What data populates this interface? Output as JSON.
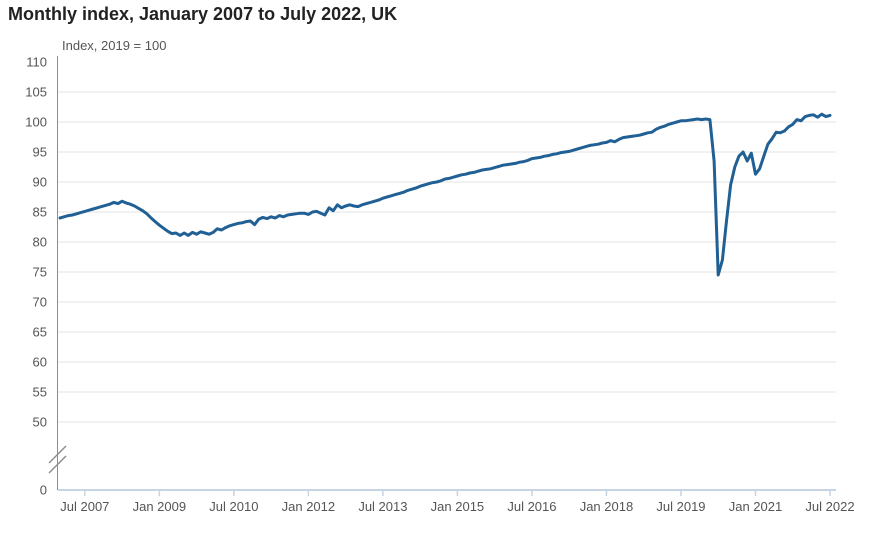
{
  "page": {
    "background": "#ffffff"
  },
  "chart_data": {
    "type": "line",
    "title": "Monthly index, January 2007 to July 2022, UK",
    "subtitle": "Index, 2019 = 100",
    "x_range": {
      "start": "January 2007",
      "end": "July 2022",
      "frequency": "monthly"
    },
    "x_ticks": [
      {
        "label": "Jul 2007",
        "month_index": 6
      },
      {
        "label": "Jan 2009",
        "month_index": 24
      },
      {
        "label": "Jul 2010",
        "month_index": 42
      },
      {
        "label": "Jan 2012",
        "month_index": 60
      },
      {
        "label": "Jul 2013",
        "month_index": 78
      },
      {
        "label": "Jan 2015",
        "month_index": 96
      },
      {
        "label": "Jul 2016",
        "month_index": 114
      },
      {
        "label": "Jan 2018",
        "month_index": 132
      },
      {
        "label": "Jul 2019",
        "month_index": 150
      },
      {
        "label": "Jan 2021",
        "month_index": 168
      },
      {
        "label": "Jul 2022",
        "month_index": 186
      }
    ],
    "y_ticks": [
      110,
      105,
      100,
      95,
      90,
      85,
      80,
      75,
      70,
      65,
      60,
      55,
      50,
      0
    ],
    "y_axis_break": true,
    "ylim_main": [
      50,
      110
    ],
    "grid": true,
    "legend": "none",
    "values": [
      84.0,
      84.2,
      84.4,
      84.5,
      84.7,
      84.9,
      85.1,
      85.3,
      85.5,
      85.7,
      85.9,
      86.1,
      86.3,
      86.6,
      86.4,
      86.8,
      86.5,
      86.3,
      86.0,
      85.6,
      85.2,
      84.7,
      84.0,
      83.4,
      82.8,
      82.3,
      81.8,
      81.4,
      81.5,
      81.1,
      81.5,
      81.1,
      81.6,
      81.3,
      81.7,
      81.5,
      81.3,
      81.6,
      82.2,
      82.0,
      82.4,
      82.7,
      82.9,
      83.1,
      83.2,
      83.4,
      83.5,
      82.9,
      83.8,
      84.1,
      83.9,
      84.2,
      84.0,
      84.4,
      84.2,
      84.5,
      84.6,
      84.7,
      84.8,
      84.8,
      84.6,
      85.0,
      85.1,
      84.8,
      84.5,
      85.7,
      85.2,
      86.2,
      85.7,
      86.0,
      86.2,
      86.0,
      85.9,
      86.2,
      86.4,
      86.6,
      86.8,
      87.0,
      87.3,
      87.5,
      87.7,
      87.9,
      88.1,
      88.3,
      88.6,
      88.8,
      89.0,
      89.3,
      89.5,
      89.7,
      89.9,
      90.0,
      90.2,
      90.5,
      90.6,
      90.8,
      91.0,
      91.2,
      91.3,
      91.5,
      91.6,
      91.8,
      92.0,
      92.1,
      92.2,
      92.4,
      92.6,
      92.8,
      92.9,
      93.0,
      93.1,
      93.3,
      93.4,
      93.6,
      93.9,
      94.0,
      94.1,
      94.3,
      94.4,
      94.6,
      94.7,
      94.9,
      95.0,
      95.1,
      95.3,
      95.5,
      95.7,
      95.9,
      96.1,
      96.2,
      96.3,
      96.5,
      96.6,
      96.9,
      96.7,
      97.1,
      97.4,
      97.5,
      97.6,
      97.7,
      97.8,
      98.0,
      98.2,
      98.3,
      98.8,
      99.1,
      99.3,
      99.6,
      99.8,
      100.0,
      100.2,
      100.2,
      100.3,
      100.4,
      100.5,
      100.4,
      100.5,
      100.4,
      93.5,
      74.5,
      77.0,
      83.5,
      89.5,
      92.5,
      94.3,
      95.0,
      93.5,
      94.8,
      91.3,
      92.2,
      94.3,
      96.3,
      97.2,
      98.3,
      98.2,
      98.5,
      99.2,
      99.6,
      100.4,
      100.2,
      100.9,
      101.1,
      101.2,
      100.8,
      101.3,
      100.9,
      101.1
    ],
    "colors": {
      "line": "#206095",
      "grid": "#e3e3e3",
      "axis": "#8c8c8c",
      "baseline": "#c6d4e4",
      "title": "#222222",
      "labels": "#555555"
    }
  }
}
